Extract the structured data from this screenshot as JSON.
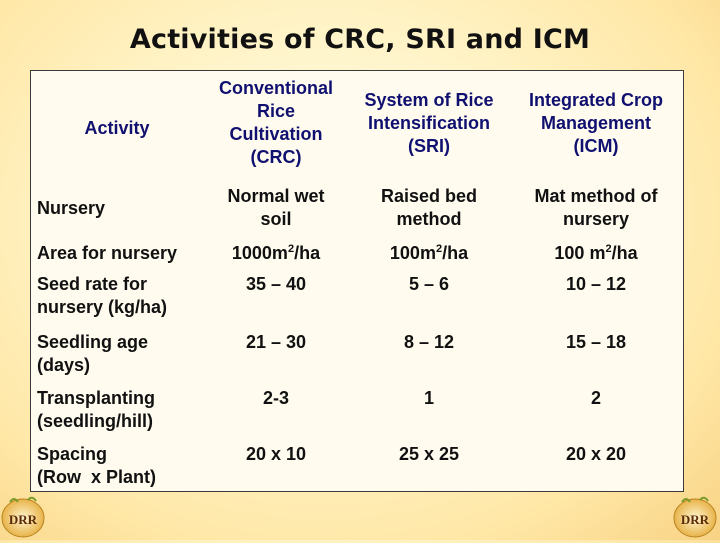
{
  "title": "Activities of CRC, SRI and ICM",
  "headers": [
    [
      "Activity"
    ],
    [
      "Conventional",
      "Rice",
      "Cultivation",
      "(CRC)"
    ],
    [
      "System of Rice",
      "Intensification",
      "(SRI)"
    ],
    [
      "Integrated Crop",
      "Management",
      "(ICM)"
    ]
  ],
  "rows": [
    {
      "label": [
        "Nursery"
      ],
      "crc": [
        "Normal wet",
        "soil"
      ],
      "sri": [
        "Raised bed",
        "method"
      ],
      "icm": [
        "Mat method of",
        "nursery"
      ]
    },
    {
      "label": [
        "Area for nursery"
      ],
      "crc": {
        "pre": "1000m",
        "sup": "2",
        "post": "/ha"
      },
      "sri": {
        "pre": "100m",
        "sup": "2",
        "post": "/ha"
      },
      "icm": {
        "pre": "100 m",
        "sup": "2",
        "post": "/ha"
      }
    },
    {
      "label": [
        "Seed rate for",
        "nursery (kg/ha)"
      ],
      "crc": [
        "35 – 40"
      ],
      "sri": [
        "5 – 6"
      ],
      "icm": [
        "10 – 12"
      ]
    },
    {
      "label": [
        "Seedling age",
        "(days)"
      ],
      "crc": [
        "21 – 30"
      ],
      "sri": [
        "8 – 12"
      ],
      "icm": [
        "15 – 18"
      ]
    },
    {
      "label": [
        "Transplanting",
        "(seedling/hill)"
      ],
      "crc": [
        "2-3"
      ],
      "sri": [
        "1"
      ],
      "icm": [
        "2"
      ]
    },
    {
      "label": [
        "Spacing",
        "(Row  x Plant)"
      ],
      "crc": [
        "20 x 10"
      ],
      "sri": [
        "25 x 25"
      ],
      "icm": [
        "20 x 20"
      ]
    }
  ],
  "logo_text": "DRR",
  "colors": {
    "header_text": "#101070",
    "body_text": "#111111"
  }
}
